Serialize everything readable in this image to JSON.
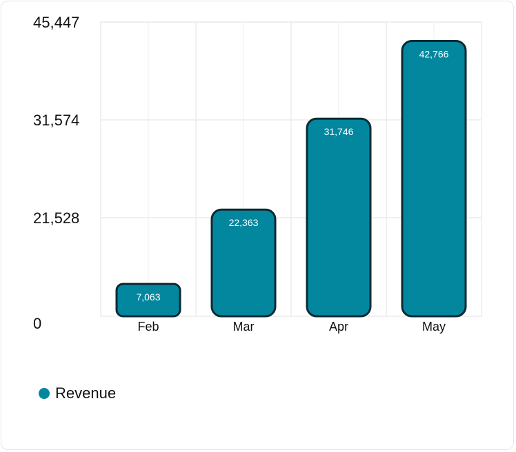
{
  "chart_data": {
    "type": "bar",
    "categories": [
      "Feb",
      "Mar",
      "Apr",
      "May"
    ],
    "series": [
      {
        "name": "Revenue",
        "values": [
          7063,
          22363,
          31746,
          42766
        ]
      }
    ],
    "data_labels": [
      "7,063",
      "22,363",
      "31,746",
      "42,766"
    ],
    "y_ticks": [
      {
        "value": 0,
        "label": "0"
      },
      {
        "value": 21528,
        "label": "21,528"
      },
      {
        "value": 31574,
        "label": "31,574"
      },
      {
        "value": 45447,
        "label": "45,447"
      }
    ],
    "ylim": [
      0,
      45447
    ],
    "grid": true,
    "legend": "bottom-left",
    "colors": {
      "bar_fill": "#02879f",
      "bar_stroke": "#0d2a33",
      "grid": "#ececec"
    }
  }
}
